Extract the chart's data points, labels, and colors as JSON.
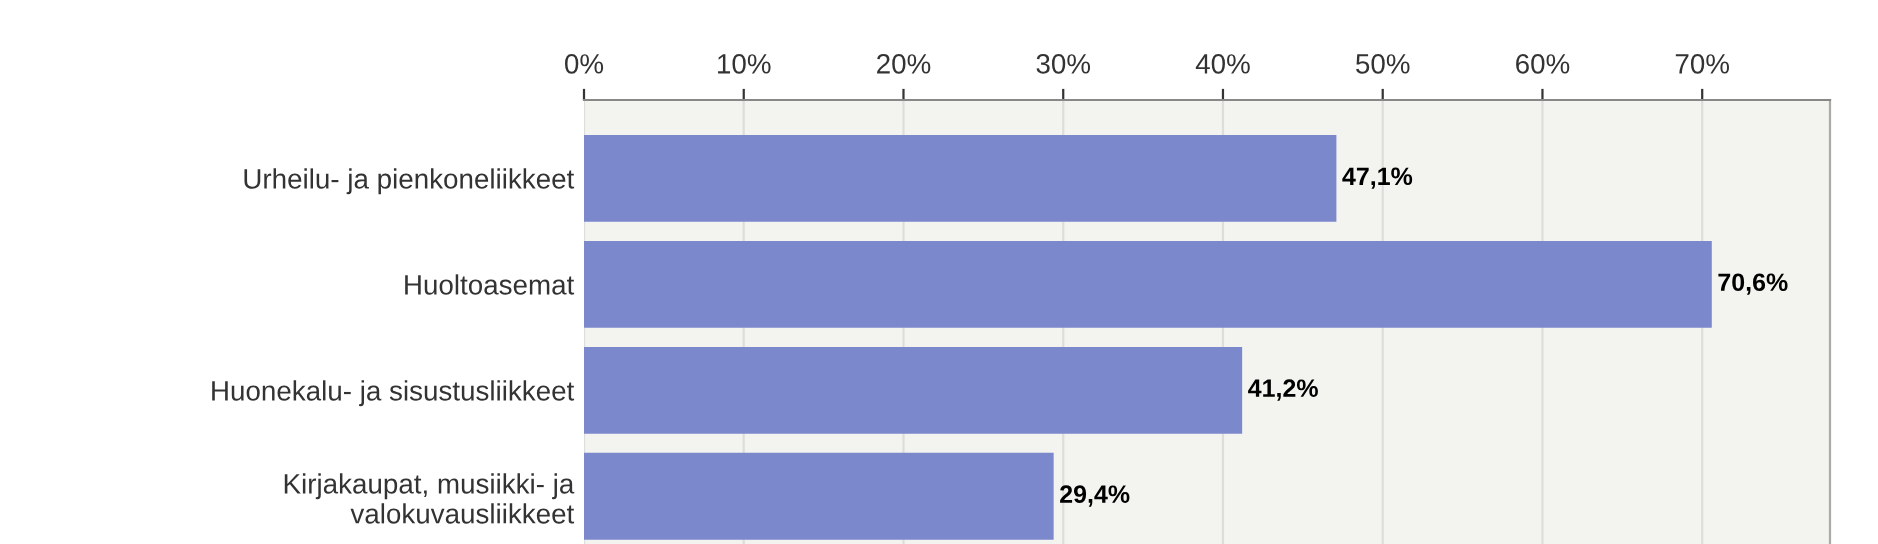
{
  "chart_data": {
    "type": "bar",
    "orientation": "horizontal",
    "categories": [
      "Urheilu- ja pienkoneliikkeet",
      "Huoltoasemat",
      "Huonekalu- ja sisustusliikkeet",
      "Kirjakaupat, musiikki- ja\nvalokuvausliikkeet"
    ],
    "values": [
      47.1,
      70.6,
      41.2,
      29.4
    ],
    "value_labels": [
      "47,1%",
      "70,6%",
      "41,2%",
      "29,4%"
    ],
    "color": "#7b88cc",
    "xlim": [
      0,
      78
    ],
    "xticks": [
      {
        "value": 0,
        "label": "0%"
      },
      {
        "value": 10,
        "label": "10%"
      },
      {
        "value": 20,
        "label": "20%"
      },
      {
        "value": 30,
        "label": "30%"
      },
      {
        "value": 40,
        "label": "40%"
      },
      {
        "value": 50,
        "label": "50%"
      },
      {
        "value": 60,
        "label": "60%"
      },
      {
        "value": 70,
        "label": "70%"
      }
    ],
    "grid": "x"
  }
}
